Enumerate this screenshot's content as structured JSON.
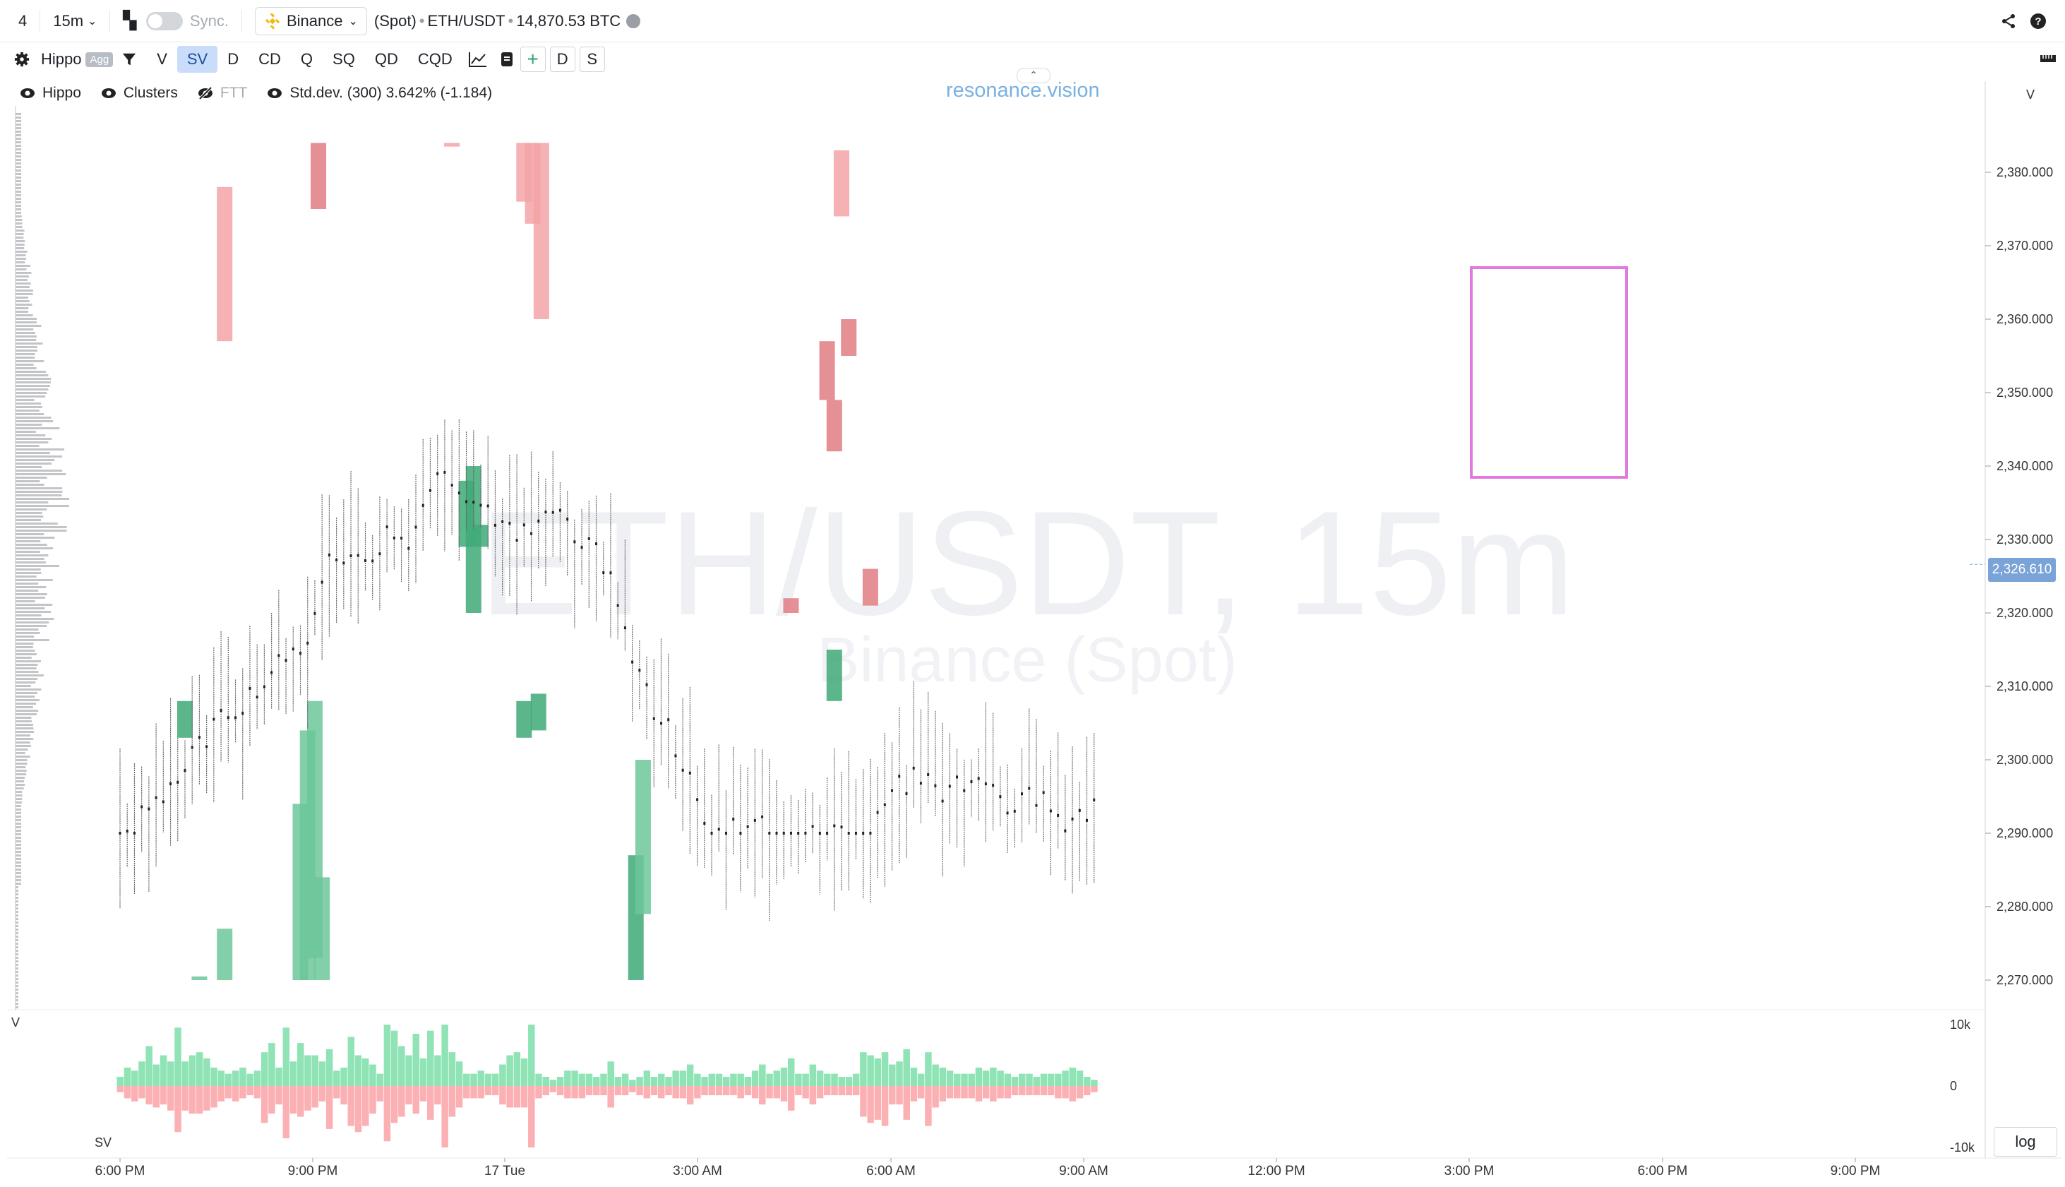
{
  "topbar": {
    "layout_num": "4",
    "interval": "15m",
    "sync_label": "Sync.",
    "exchange": "Binance",
    "market": "(Spot)",
    "symbol": "ETH/USDT",
    "volume": "14,870.53 BTC"
  },
  "toolbar": {
    "indicator": "Hippo",
    "agg_badge": "Agg",
    "buttons": [
      "V",
      "SV",
      "D",
      "CD",
      "Q",
      "SQ",
      "QD",
      "CQD"
    ],
    "active": "SV",
    "extra": [
      "D",
      "S"
    ]
  },
  "legend": {
    "hippo": "Hippo",
    "clusters": "Clusters",
    "ftt": "FTT",
    "stddev": "Std.dev. (300) 3.642% (-1.184)"
  },
  "brand": "resonance.vision",
  "watermark": {
    "symbol": "ETH/USDT, 15m",
    "exchange": "Binance (Spot)"
  },
  "price_axis": {
    "label": "V",
    "ticks": [
      "2,380.000",
      "2,370.000",
      "2,360.000",
      "2,350.000",
      "2,340.000",
      "2,330.000",
      "2,320.000",
      "2,310.000",
      "2,300.000",
      "2,290.000",
      "2,280.000",
      "2,270.000"
    ],
    "current": "2,326.610"
  },
  "volume_pane": {
    "label_top": "V",
    "label_bottom": "SV",
    "ticks": [
      "10k",
      "0",
      "-10k"
    ]
  },
  "time_axis": [
    "6:00 PM",
    "9:00 PM",
    "17 Tue",
    "3:00 AM",
    "6:00 AM",
    "9:00 AM",
    "12:00 PM",
    "3:00 PM",
    "6:00 PM",
    "9:00 PM"
  ],
  "log_button": "log",
  "colors": {
    "buy": "#6cc79a",
    "sell": "#f3a3a6",
    "sell_dark": "#e07c82",
    "buy_dark": "#3fa978",
    "highlight": "#e07ae0",
    "accent": "#7aa3d8"
  },
  "chart_data": {
    "type": "bar",
    "symbol": "ETH/USDT",
    "interval": "15m",
    "ylim": [
      2265,
      2390
    ],
    "price_ticks": [
      2380,
      2370,
      2360,
      2350,
      2340,
      2330,
      2320,
      2310,
      2300,
      2290,
      2280,
      2270
    ],
    "last_price": 2326.61,
    "buy_volume": [
      1.5,
      3.0,
      2.5,
      4.0,
      6.5,
      3.5,
      5.0,
      4.0,
      9.5,
      4.0,
      5.0,
      5.5,
      4.5,
      3.0,
      2.5,
      2.0,
      2.5,
      3.0,
      2.0,
      2.5,
      5.5,
      7.0,
      3.0,
      9.5,
      4.0,
      7.0,
      5.0,
      5.0,
      4.0,
      6.0,
      2.5,
      3.0,
      8.0,
      5.0,
      4.5,
      3.5,
      2.0,
      10.0,
      9.0,
      6.5,
      5.0,
      8.5,
      4.5,
      9.0,
      5.0,
      10.0,
      5.5,
      4.0,
      2.0,
      2.0,
      2.5,
      2.0,
      2.0,
      3.5,
      5.0,
      5.5,
      4.5,
      10.0,
      2.0,
      1.5,
      1.0,
      1.5,
      2.5,
      2.5,
      2.0,
      2.0,
      1.5,
      2.0,
      4.0,
      1.5,
      2.0,
      1.0,
      1.5,
      2.5,
      1.5,
      2.0,
      1.5,
      2.5,
      2.5,
      3.5,
      2.0,
      1.5,
      2.0,
      2.0,
      1.5,
      2.0,
      2.0,
      1.5,
      2.5,
      3.5,
      2.0,
      2.5,
      3.0,
      4.5,
      2.0,
      2.0,
      3.5,
      2.5,
      2.0,
      2.0,
      1.5,
      1.5,
      2.0,
      5.5,
      5.0,
      4.5,
      5.5,
      3.5,
      4.0,
      6.0,
      3.0,
      2.0,
      5.5,
      3.5,
      3.0,
      2.5,
      2.0,
      2.0,
      2.0,
      3.0,
      2.5,
      3.0,
      2.5,
      2.0,
      1.5,
      2.0,
      2.0,
      1.5,
      2.0,
      2.0,
      2.0,
      2.5,
      3.0,
      2.5,
      1.5,
      1.0
    ],
    "sell_volume": [
      -1.0,
      -2.0,
      -2.5,
      -2.0,
      -3.0,
      -3.5,
      -3.0,
      -4.0,
      -7.5,
      -4.0,
      -4.5,
      -4.5,
      -4.0,
      -3.5,
      -2.5,
      -2.0,
      -2.5,
      -2.0,
      -1.5,
      -2.0,
      -6.0,
      -4.5,
      -3.0,
      -8.5,
      -4.5,
      -5.0,
      -4.0,
      -3.5,
      -2.5,
      -7.0,
      -2.0,
      -3.0,
      -6.5,
      -7.5,
      -6.5,
      -4.5,
      -2.5,
      -9.0,
      -6.0,
      -5.0,
      -3.0,
      -4.5,
      -2.5,
      -5.5,
      -3.0,
      -10.0,
      -5.0,
      -3.5,
      -2.0,
      -2.0,
      -2.0,
      -1.5,
      -1.5,
      -3.0,
      -3.5,
      -3.5,
      -3.5,
      -10.0,
      -2.0,
      -1.5,
      -1.0,
      -1.5,
      -2.0,
      -2.0,
      -2.0,
      -1.5,
      -1.5,
      -1.5,
      -3.5,
      -1.5,
      -1.5,
      -1.0,
      -1.5,
      -2.0,
      -1.5,
      -2.0,
      -1.5,
      -2.0,
      -2.0,
      -3.0,
      -2.0,
      -1.5,
      -1.5,
      -1.5,
      -1.5,
      -1.5,
      -2.0,
      -1.5,
      -2.0,
      -3.0,
      -2.0,
      -2.0,
      -2.5,
      -4.0,
      -1.5,
      -2.0,
      -3.0,
      -2.0,
      -1.5,
      -1.5,
      -1.5,
      -1.5,
      -1.5,
      -5.0,
      -6.0,
      -5.5,
      -6.5,
      -3.0,
      -3.0,
      -5.5,
      -2.5,
      -2.0,
      -6.5,
      -3.5,
      -2.5,
      -2.0,
      -2.0,
      -2.0,
      -2.0,
      -2.5,
      -2.0,
      -2.5,
      -2.0,
      -2.0,
      -1.5,
      -1.5,
      -1.5,
      -1.5,
      -1.5,
      -1.5,
      -2.0,
      -2.0,
      -2.5,
      -2.0,
      -1.5,
      -1.0
    ]
  }
}
